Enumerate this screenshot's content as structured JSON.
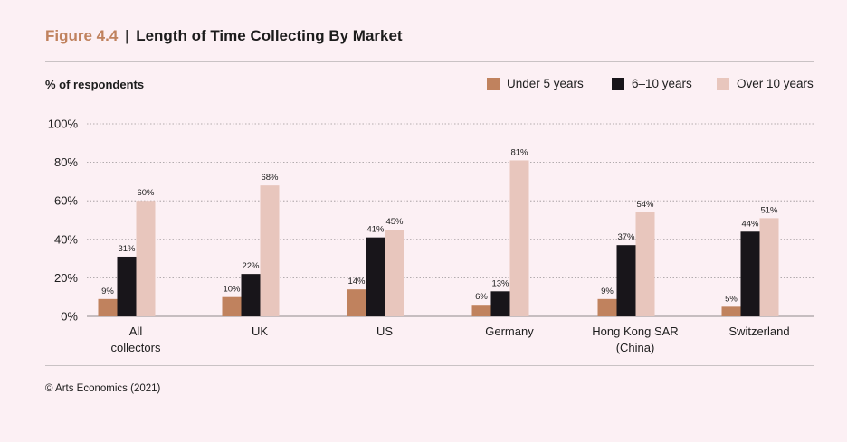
{
  "figure": {
    "number": "Figure 4.4",
    "separator": "|",
    "title": "Length of Time Collecting By Market"
  },
  "footer": {
    "credit": "© Arts Economics (2021)"
  },
  "colors": {
    "background": "#fcf0f4",
    "accent": "#c0825e",
    "under5": "#c0825e",
    "sixTo10": "#18151a",
    "over10": "#e8c6bd",
    "grid": "#9a9496"
  },
  "chart_data": {
    "type": "bar",
    "title": "Length of Time Collecting By Market",
    "ylabel": "% of respondents",
    "xlabel": "",
    "ylim": [
      0,
      100
    ],
    "yticks": [
      "0%",
      "20%",
      "40%",
      "60%",
      "80%",
      "100%"
    ],
    "ytick_values": [
      0,
      20,
      40,
      60,
      80,
      100
    ],
    "grid": true,
    "legend_position": "top-right",
    "categories": [
      [
        "All",
        "collectors"
      ],
      [
        "UK"
      ],
      [
        "US"
      ],
      [
        "Germany"
      ],
      [
        "Hong Kong SAR",
        "(China)"
      ],
      [
        "Switzerland"
      ]
    ],
    "series": [
      {
        "name": "Under 5 years",
        "color": "#c0825e",
        "values": [
          9,
          10,
          14,
          6,
          9,
          5
        ],
        "labels": [
          "9%",
          "10%",
          "14%",
          "6%",
          "9%",
          "5%"
        ]
      },
      {
        "name": "6–10 years",
        "color": "#18151a",
        "values": [
          31,
          22,
          41,
          13,
          37,
          44
        ],
        "labels": [
          "31%",
          "22%",
          "41%",
          "13%",
          "37%",
          "44%"
        ]
      },
      {
        "name": "Over 10 years",
        "color": "#e8c6bd",
        "values": [
          60,
          68,
          45,
          81,
          54,
          51
        ],
        "labels": [
          "60%",
          "68%",
          "45%",
          "81%",
          "54%",
          "51%"
        ]
      }
    ]
  }
}
